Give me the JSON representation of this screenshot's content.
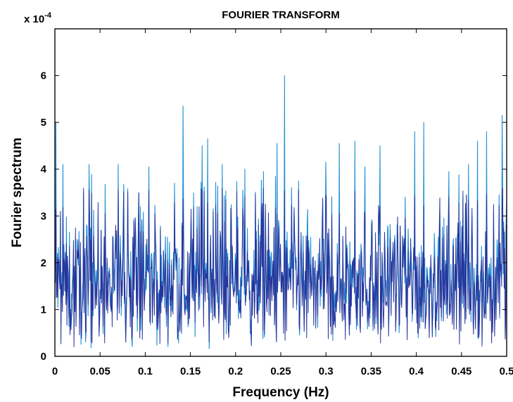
{
  "chart_data": {
    "type": "line",
    "title": "FOURIER TRANSFORM",
    "xlabel": "Frequency  (Hz)",
    "ylabel": "Fourier spectrum",
    "y_scale_label": "x 10",
    "y_scale_exponent": "-4",
    "xlim": [
      0,
      0.5
    ],
    "ylim": [
      0,
      7
    ],
    "x_ticks": [
      0,
      0.05,
      0.1,
      0.15,
      0.2,
      0.25,
      0.3,
      0.35,
      0.4,
      0.45,
      0.5
    ],
    "x_tick_labels": [
      "0",
      "0.05",
      "0.1",
      "0.15",
      "0.2",
      "0.25",
      "0.3",
      "0.35",
      "0.4",
      "0.45",
      "0.5"
    ],
    "y_ticks": [
      0,
      1,
      2,
      3,
      4,
      5,
      6
    ],
    "y_tick_labels": [
      "0",
      "1",
      "2",
      "3",
      "4",
      "5",
      "6"
    ],
    "grid": false,
    "colors": {
      "series_light": "#1f8fd6",
      "series_dark": "#27359b"
    },
    "series": [
      {
        "x_range": [
          0,
          0.5
        ],
        "points": 900,
        "baseline_mean": 1.6,
        "spread": 0.6,
        "peaks": [
          {
            "x": 0.001,
            "y": 5.0
          },
          {
            "x": 0.009,
            "y": 4.1
          },
          {
            "x": 0.038,
            "y": 4.1
          },
          {
            "x": 0.07,
            "y": 4.1
          },
          {
            "x": 0.104,
            "y": 4.05
          },
          {
            "x": 0.142,
            "y": 5.35
          },
          {
            "x": 0.163,
            "y": 4.5
          },
          {
            "x": 0.169,
            "y": 4.65
          },
          {
            "x": 0.185,
            "y": 4.1
          },
          {
            "x": 0.21,
            "y": 4.0
          },
          {
            "x": 0.231,
            "y": 3.95
          },
          {
            "x": 0.246,
            "y": 4.55
          },
          {
            "x": 0.254,
            "y": 6.0
          },
          {
            "x": 0.3,
            "y": 4.15
          },
          {
            "x": 0.315,
            "y": 4.55
          },
          {
            "x": 0.332,
            "y": 4.6
          },
          {
            "x": 0.343,
            "y": 4.05
          },
          {
            "x": 0.36,
            "y": 4.5
          },
          {
            "x": 0.398,
            "y": 4.8
          },
          {
            "x": 0.408,
            "y": 5.0
          },
          {
            "x": 0.436,
            "y": 3.95
          },
          {
            "x": 0.458,
            "y": 4.1
          },
          {
            "x": 0.468,
            "y": 4.6
          },
          {
            "x": 0.478,
            "y": 4.8
          },
          {
            "x": 0.495,
            "y": 5.15
          },
          {
            "x": 0.5,
            "y": 3.3
          }
        ]
      }
    ]
  }
}
